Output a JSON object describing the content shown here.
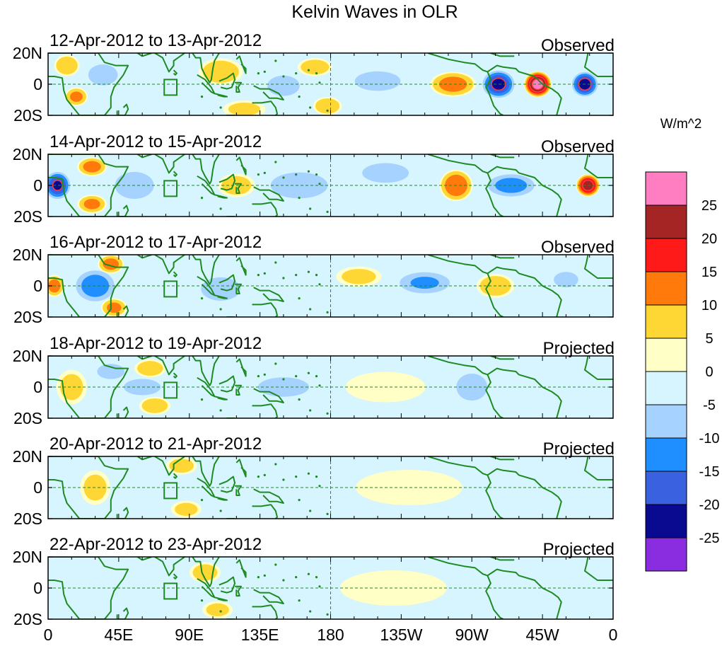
{
  "chart_data": {
    "type": "heatmap",
    "title": "Kelvin Waves in OLR",
    "colorbar": {
      "unit_label": "W/m^2",
      "tick_labels": [
        "25",
        "20",
        "15",
        "10",
        "5",
        "0",
        "-5",
        "-10",
        "-15",
        "-20",
        "-25"
      ],
      "levels": [
        {
          "min": 25,
          "max": null,
          "color": "#ff7ec2"
        },
        {
          "min": 20,
          "max": 25,
          "color": "#a52424"
        },
        {
          "min": 15,
          "max": 20,
          "color": "#ff1a1a"
        },
        {
          "min": 10,
          "max": 15,
          "color": "#ff7a0a"
        },
        {
          "min": 5,
          "max": 10,
          "color": "#ffd735"
        },
        {
          "min": 0,
          "max": 5,
          "color": "#ffffc6"
        },
        {
          "min": -5,
          "max": 0,
          "color": "#d6f5ff"
        },
        {
          "min": -10,
          "max": -5,
          "color": "#a6d2ff"
        },
        {
          "min": -15,
          "max": -10,
          "color": "#1f8fff"
        },
        {
          "min": -20,
          "max": -15,
          "color": "#3a62e0"
        },
        {
          "min": -25,
          "max": -20,
          "color": "#0a0a90"
        },
        {
          "min": null,
          "max": -25,
          "color": "#8a2ce0"
        }
      ]
    },
    "x_axis": {
      "tick_labels": [
        "0",
        "45E",
        "90E",
        "135E",
        "180",
        "135W",
        "90W",
        "45W",
        "0"
      ],
      "tick_values_deg_east": [
        0,
        45,
        90,
        135,
        180,
        225,
        270,
        315,
        360
      ],
      "range_deg_east": [
        0,
        360
      ]
    },
    "y_axis": {
      "tick_labels": [
        "20N",
        "0",
        "20S"
      ],
      "tick_values_deg": [
        20,
        0,
        -20
      ],
      "range_deg": [
        -20,
        20
      ]
    },
    "reference_lines": {
      "equator_lat": 0,
      "dateline_lon": 180,
      "box_lon": [
        74,
        82
      ],
      "box_lat": [
        -7,
        3
      ]
    },
    "panels": [
      {
        "date_range": "12-Apr-2012 to 13-Apr-2012",
        "status": "Observed",
        "anomalies": [
          {
            "lon": 12,
            "lat": 12,
            "value": 9,
            "dlon": 8,
            "dlat": 7
          },
          {
            "lon": 18,
            "lat": -8,
            "value": 11,
            "dlon": 7,
            "dlat": 6
          },
          {
            "lon": 35,
            "lat": 6,
            "value": -7,
            "dlon": 12,
            "dlat": 9
          },
          {
            "lon": 110,
            "lat": 8,
            "value": 8,
            "dlon": 14,
            "dlat": 9
          },
          {
            "lon": 125,
            "lat": -16,
            "value": 6,
            "dlon": 14,
            "dlat": 6
          },
          {
            "lon": 150,
            "lat": -1,
            "value": -9,
            "dlon": 12,
            "dlat": 8
          },
          {
            "lon": 170,
            "lat": 11,
            "value": 8,
            "dlon": 11,
            "dlat": 6
          },
          {
            "lon": 178,
            "lat": -14,
            "value": 9,
            "dlon": 9,
            "dlat": 6
          },
          {
            "lon": 210,
            "lat": 2,
            "value": -6,
            "dlon": 20,
            "dlat": 9
          },
          {
            "lon": 258,
            "lat": 0,
            "value": 12,
            "dlon": 14,
            "dlat": 8
          },
          {
            "lon": 287,
            "lat": 0,
            "value": -21,
            "dlon": 10,
            "dlat": 9
          },
          {
            "lon": 312,
            "lat": 0,
            "value": 27,
            "dlon": 8,
            "dlat": 8
          },
          {
            "lon": 342,
            "lat": 0,
            "value": -22,
            "dlon": 8,
            "dlat": 8
          }
        ]
      },
      {
        "date_range": "14-Apr-2012 to 15-Apr-2012",
        "status": "Observed",
        "anomalies": [
          {
            "lon": 6,
            "lat": 0,
            "value": -20,
            "dlon": 8,
            "dlat": 9
          },
          {
            "lon": 28,
            "lat": 12,
            "value": 12,
            "dlon": 9,
            "dlat": 6
          },
          {
            "lon": 28,
            "lat": -12,
            "value": 11,
            "dlon": 9,
            "dlat": 6
          },
          {
            "lon": 55,
            "lat": 0,
            "value": -8,
            "dlon": 15,
            "dlat": 11
          },
          {
            "lon": 120,
            "lat": 0,
            "value": 7,
            "dlon": 12,
            "dlat": 8
          },
          {
            "lon": 160,
            "lat": 0,
            "value": -6,
            "dlon": 25,
            "dlat": 12
          },
          {
            "lon": 215,
            "lat": 8,
            "value": -8,
            "dlon": 18,
            "dlat": 8
          },
          {
            "lon": 260,
            "lat": 0,
            "value": 14,
            "dlon": 10,
            "dlat": 10
          },
          {
            "lon": 295,
            "lat": 0,
            "value": -12,
            "dlon": 16,
            "dlat": 8
          },
          {
            "lon": 344,
            "lat": 0,
            "value": 22,
            "dlon": 7,
            "dlat": 7
          }
        ]
      },
      {
        "date_range": "16-Apr-2012 to 17-Apr-2012",
        "status": "Observed",
        "anomalies": [
          {
            "lon": 4,
            "lat": 0,
            "value": 12,
            "dlon": 6,
            "dlat": 7
          },
          {
            "lon": 30,
            "lat": 0,
            "value": -13,
            "dlon": 13,
            "dlat": 11
          },
          {
            "lon": 40,
            "lat": 14,
            "value": 12,
            "dlon": 8,
            "dlat": 6
          },
          {
            "lon": 42,
            "lat": -14,
            "value": 11,
            "dlon": 8,
            "dlat": 6
          },
          {
            "lon": 110,
            "lat": -2,
            "value": -7,
            "dlon": 16,
            "dlat": 10
          },
          {
            "lon": 198,
            "lat": 6,
            "value": 6,
            "dlon": 15,
            "dlat": 7
          },
          {
            "lon": 240,
            "lat": 2,
            "value": -10,
            "dlon": 18,
            "dlat": 8
          },
          {
            "lon": 285,
            "lat": 0,
            "value": 8,
            "dlon": 12,
            "dlat": 8
          },
          {
            "lon": 330,
            "lat": 4,
            "value": -5,
            "dlon": 12,
            "dlat": 8
          }
        ]
      },
      {
        "date_range": "18-Apr-2012 to 19-Apr-2012",
        "status": "Projected",
        "anomalies": [
          {
            "lon": 15,
            "lat": 0,
            "value": 6,
            "dlon": 10,
            "dlat": 12
          },
          {
            "lon": 40,
            "lat": 10,
            "value": -6,
            "dlon": 12,
            "dlat": 7
          },
          {
            "lon": 65,
            "lat": 12,
            "value": 8,
            "dlon": 10,
            "dlat": 6
          },
          {
            "lon": 68,
            "lat": -12,
            "value": 8,
            "dlon": 10,
            "dlat": 6
          },
          {
            "lon": 60,
            "lat": 0,
            "value": -7,
            "dlon": 15,
            "dlat": 7
          },
          {
            "lon": 150,
            "lat": 0,
            "value": -5,
            "dlon": 25,
            "dlat": 10
          },
          {
            "lon": 215,
            "lat": 0,
            "value": 3,
            "dlon": 30,
            "dlat": 12
          },
          {
            "lon": 270,
            "lat": 0,
            "value": -8,
            "dlon": 12,
            "dlat": 11
          }
        ]
      },
      {
        "date_range": "20-Apr-2012 to 21-Apr-2012",
        "status": "Projected",
        "anomalies": [
          {
            "lon": 30,
            "lat": 0,
            "value": 6,
            "dlon": 10,
            "dlat": 12
          },
          {
            "lon": 85,
            "lat": 14,
            "value": 7,
            "dlon": 10,
            "dlat": 6
          },
          {
            "lon": 88,
            "lat": -14,
            "value": 6,
            "dlon": 10,
            "dlat": 6
          },
          {
            "lon": 140,
            "lat": 0,
            "value": -4,
            "dlon": 30,
            "dlat": 12
          },
          {
            "lon": 230,
            "lat": 0,
            "value": 3,
            "dlon": 40,
            "dlat": 14
          }
        ]
      },
      {
        "date_range": "22-Apr-2012 to 23-Apr-2012",
        "status": "Projected",
        "anomalies": [
          {
            "lon": 20,
            "lat": 0,
            "value": -3,
            "dlon": 15,
            "dlat": 12
          },
          {
            "lon": 100,
            "lat": 10,
            "value": 7,
            "dlon": 10,
            "dlat": 7
          },
          {
            "lon": 108,
            "lat": -14,
            "value": 6,
            "dlon": 10,
            "dlat": 6
          },
          {
            "lon": 150,
            "lat": 0,
            "value": -4,
            "dlon": 15,
            "dlat": 10
          },
          {
            "lon": 220,
            "lat": 0,
            "value": 3,
            "dlon": 40,
            "dlat": 14
          }
        ]
      }
    ]
  }
}
